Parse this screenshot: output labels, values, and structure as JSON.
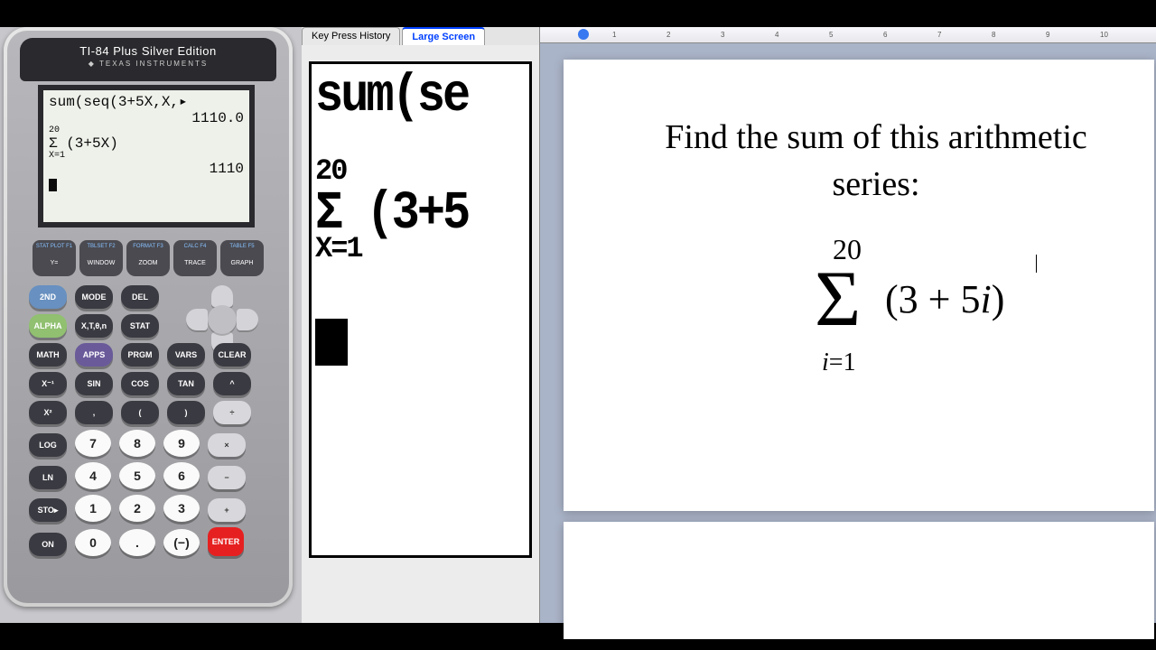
{
  "calculator": {
    "brand_main": "TI-84 Plus",
    "brand_sub": "Silver Edition",
    "manufacturer": "TEXAS INSTRUMENTS",
    "screen": {
      "line1": "sum(seq(3+5X,X,▸",
      "line2": "          1110.0",
      "sigma_upper": "20",
      "sigma_body": "Σ (3+5X)",
      "sigma_lower": "X=1",
      "result": "            1110"
    },
    "f_keys": [
      {
        "sup": "STAT PLOT F1",
        "label": "Y="
      },
      {
        "sup": "TBLSET F2",
        "label": "WINDOW"
      },
      {
        "sup": "FORMAT F3",
        "label": "ZOOM"
      },
      {
        "sup": "CALC F4",
        "label": "TRACE"
      },
      {
        "sup": "TABLE F5",
        "label": "GRAPH"
      }
    ],
    "rows": [
      [
        {
          "t": "2ND",
          "c": "blue"
        },
        {
          "t": "MODE",
          "c": ""
        },
        {
          "t": "DEL",
          "c": ""
        }
      ],
      [
        {
          "t": "ALPHA",
          "c": "green"
        },
        {
          "t": "X,T,θ,n",
          "c": ""
        },
        {
          "t": "STAT",
          "c": ""
        }
      ],
      [
        {
          "t": "MATH",
          "c": ""
        },
        {
          "t": "APPS",
          "c": "purple"
        },
        {
          "t": "PRGM",
          "c": ""
        },
        {
          "t": "VARS",
          "c": ""
        },
        {
          "t": "CLEAR",
          "c": ""
        }
      ],
      [
        {
          "t": "X⁻¹",
          "c": ""
        },
        {
          "t": "SIN",
          "c": ""
        },
        {
          "t": "COS",
          "c": ""
        },
        {
          "t": "TAN",
          "c": ""
        },
        {
          "t": "^",
          "c": ""
        }
      ],
      [
        {
          "t": "X²",
          "c": ""
        },
        {
          "t": ",",
          "c": ""
        },
        {
          "t": "(",
          "c": ""
        },
        {
          "t": ")",
          "c": ""
        },
        {
          "t": "÷",
          "c": "gray"
        }
      ],
      [
        {
          "t": "LOG",
          "c": ""
        },
        {
          "t": "7",
          "c": "white"
        },
        {
          "t": "8",
          "c": "white"
        },
        {
          "t": "9",
          "c": "white"
        },
        {
          "t": "×",
          "c": "gray"
        }
      ],
      [
        {
          "t": "LN",
          "c": ""
        },
        {
          "t": "4",
          "c": "white"
        },
        {
          "t": "5",
          "c": "white"
        },
        {
          "t": "6",
          "c": "white"
        },
        {
          "t": "−",
          "c": "gray"
        }
      ],
      [
        {
          "t": "STO▸",
          "c": ""
        },
        {
          "t": "1",
          "c": "white"
        },
        {
          "t": "2",
          "c": "white"
        },
        {
          "t": "3",
          "c": "white"
        },
        {
          "t": "+",
          "c": "gray"
        }
      ],
      [
        {
          "t": "ON",
          "c": ""
        },
        {
          "t": "0",
          "c": "white"
        },
        {
          "t": ".",
          "c": "white"
        },
        {
          "t": "(−)",
          "c": "white"
        },
        {
          "t": "ENTER",
          "c": "red"
        }
      ]
    ]
  },
  "middle": {
    "tabs": [
      {
        "label": "Key Press History",
        "active": false
      },
      {
        "label": "Large Screen",
        "active": true
      }
    ],
    "ls_line1": "sum(se",
    "ls_upper": "20",
    "ls_sigma": "Σ (3+5",
    "ls_lower": "X=1"
  },
  "document": {
    "prompt": "Find the sum of this arithmetic series:",
    "sigma_upper": "20",
    "sigma_lower_var": "i",
    "sigma_lower_val": "=1",
    "expr": "(3 + 5",
    "expr_var": "i",
    "expr_close": ")"
  },
  "colors": {
    "background": "#c8c8cc",
    "black": "#000000",
    "calc_body": "#9a9a9e",
    "screen_bg": "#eef1ea",
    "blue_key": "#6890c0",
    "green_key": "#90c070",
    "red_key": "#e62020",
    "tab_active": "#0040ff",
    "doc_bg": "#ffffff",
    "right_bg": "#aab4c8"
  }
}
